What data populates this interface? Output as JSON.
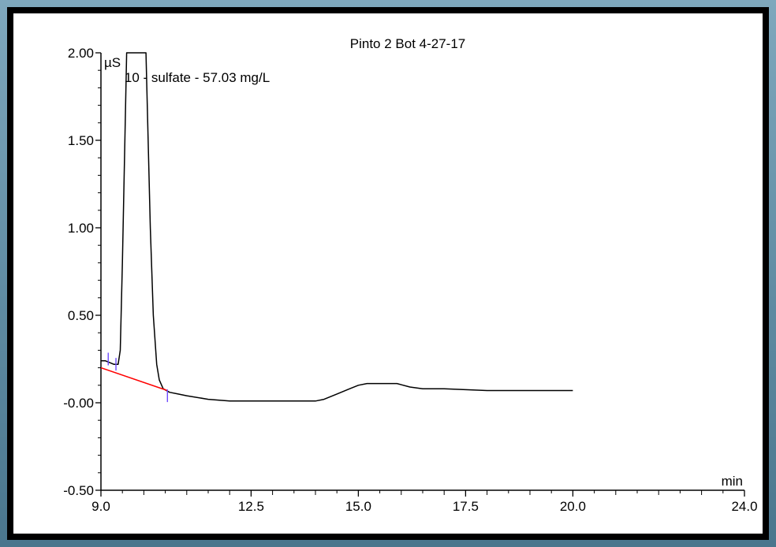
{
  "chart_data": {
    "type": "line",
    "title": "Pinto 2 Bot 4-27-17",
    "ylabel": "µS",
    "xlabel": "min",
    "xlim": [
      9.0,
      24.0
    ],
    "ylim": [
      -0.5,
      2.0
    ],
    "x_ticks": [
      9.0,
      12.5,
      15.0,
      17.5,
      20.0,
      24.0
    ],
    "x_tick_labels": [
      "9.0",
      "12.5",
      "15.0",
      "17.5",
      "20.0",
      "24.0"
    ],
    "y_ticks": [
      2.0,
      1.5,
      1.0,
      0.5,
      0.0,
      -0.5
    ],
    "y_tick_labels": [
      "2.00",
      "1.50",
      "1.00",
      "0.50",
      "-0.00",
      "-0.50"
    ],
    "annotations": [
      {
        "text": "10 - sulfate - 57.03 mg/L",
        "x": 9.55,
        "y": 1.86
      }
    ],
    "series": [
      {
        "color": "#000000",
        "x": [
          9.0,
          9.1,
          9.2,
          9.3,
          9.36,
          9.4,
          9.45,
          9.5,
          9.6,
          9.7,
          9.9,
          10.05,
          10.15,
          10.22,
          10.3,
          10.36,
          10.45,
          10.6,
          10.8,
          11.0,
          11.5,
          12.0,
          13.0,
          14.0,
          14.2,
          14.5,
          14.8,
          15.0,
          15.2,
          15.5,
          15.9,
          16.2,
          16.5,
          17.0,
          18.0,
          19.0,
          20.0
        ],
        "y": [
          0.24,
          0.24,
          0.23,
          0.22,
          0.22,
          0.22,
          0.3,
          0.8,
          2.0,
          2.0,
          2.0,
          2.0,
          1.0,
          0.5,
          0.22,
          0.13,
          0.08,
          0.06,
          0.05,
          0.04,
          0.02,
          0.01,
          0.01,
          0.01,
          0.02,
          0.05,
          0.08,
          0.1,
          0.11,
          0.11,
          0.11,
          0.09,
          0.08,
          0.08,
          0.07,
          0.07,
          0.07
        ]
      },
      {
        "color": "#ff0000",
        "x": [
          9.0,
          10.55
        ],
        "y": [
          0.2,
          0.07
        ]
      }
    ],
    "peak_markers": [
      {
        "x": 9.17,
        "y": 0.25
      },
      {
        "x": 9.35,
        "y": 0.22
      },
      {
        "x": 10.55,
        "y": 0.04
      }
    ],
    "marker_color": "#6d4aff",
    "grid": false
  }
}
